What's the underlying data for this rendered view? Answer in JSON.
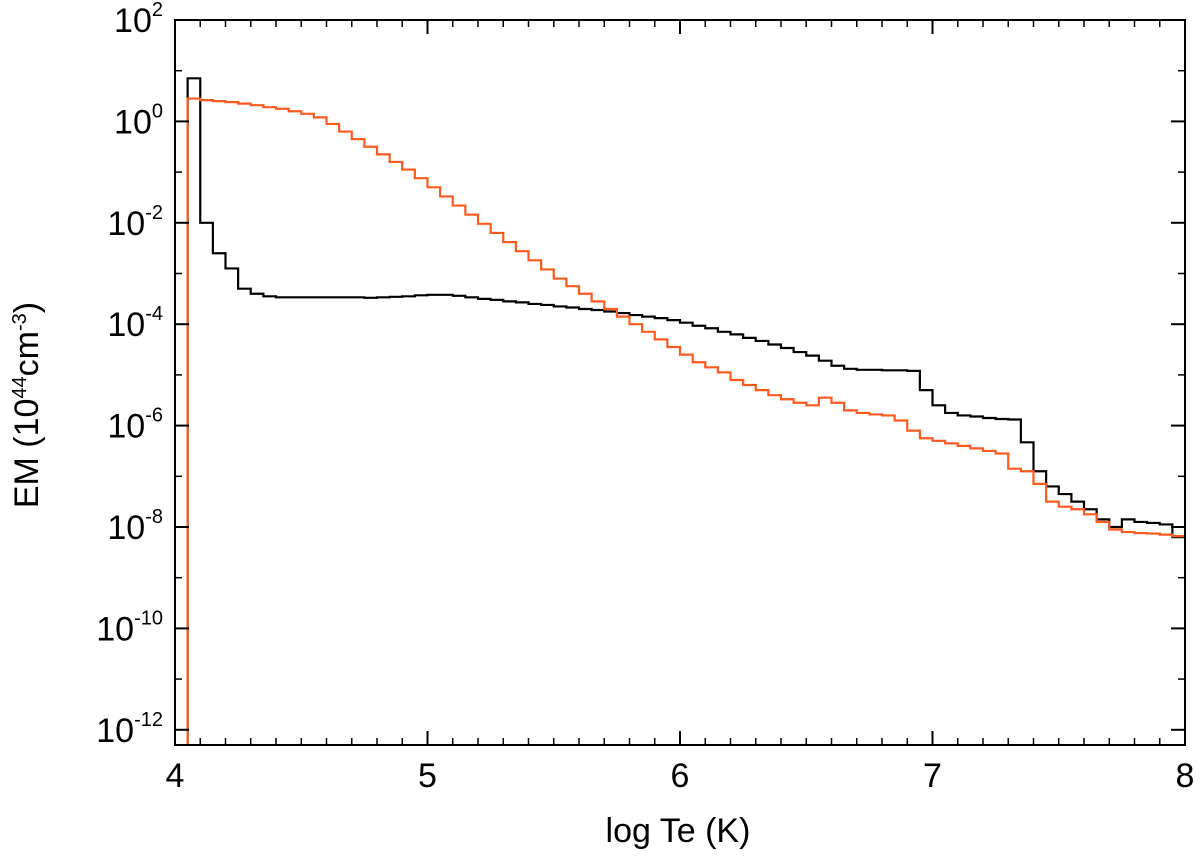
{
  "chart_data": {
    "type": "line",
    "xlabel": "log Te (K)",
    "ylabel": {
      "prefix": "EM (10",
      "exp1": "44",
      "mid": "cm",
      "exp2": "-3",
      "suffix": ")"
    },
    "xlim": [
      4,
      8
    ],
    "ylim_log10": [
      -12.3,
      2
    ],
    "y_scale": "log",
    "x_ticks": [
      "4",
      "5",
      "6",
      "7",
      "8"
    ],
    "y_ticks": [
      {
        "base": "10",
        "exp": "2"
      },
      {
        "base": "10",
        "exp": "0"
      },
      {
        "base": "10",
        "exp": "-2"
      },
      {
        "base": "10",
        "exp": "-4"
      },
      {
        "base": "10",
        "exp": "-6"
      },
      {
        "base": "10",
        "exp": "-8"
      },
      {
        "base": "10",
        "exp": "-10"
      },
      {
        "base": "10",
        "exp": "-12"
      }
    ],
    "y_tick_values_log10": [
      2,
      0,
      -2,
      -4,
      -6,
      -8,
      -10,
      -12
    ],
    "grid": false,
    "series": [
      {
        "color": "#000000",
        "step": true,
        "x": [
          4.0,
          4.05,
          4.1,
          4.15,
          4.2,
          4.25,
          4.3,
          4.35,
          4.4,
          4.45,
          4.5,
          4.55,
          4.6,
          4.65,
          4.7,
          4.75,
          4.8,
          4.85,
          4.9,
          4.95,
          5.0,
          5.05,
          5.1,
          5.15,
          5.2,
          5.25,
          5.3,
          5.35,
          5.4,
          5.45,
          5.5,
          5.55,
          5.6,
          5.65,
          5.7,
          5.75,
          5.8,
          5.85,
          5.9,
          5.95,
          6.0,
          6.05,
          6.1,
          6.15,
          6.2,
          6.25,
          6.3,
          6.35,
          6.4,
          6.45,
          6.5,
          6.55,
          6.6,
          6.65,
          6.7,
          6.75,
          6.8,
          6.85,
          6.9,
          6.95,
          7.0,
          7.05,
          7.1,
          7.15,
          7.2,
          7.25,
          7.3,
          7.35,
          7.4,
          7.45,
          7.5,
          7.55,
          7.6,
          7.65,
          7.7,
          7.75,
          7.8,
          7.85,
          7.9,
          7.95
        ],
        "log10y": [
          -12.5,
          0.85,
          -2.0,
          -2.6,
          -2.9,
          -3.3,
          -3.4,
          -3.45,
          -3.47,
          -3.47,
          -3.47,
          -3.47,
          -3.47,
          -3.47,
          -3.47,
          -3.48,
          -3.47,
          -3.46,
          -3.45,
          -3.43,
          -3.42,
          -3.42,
          -3.44,
          -3.47,
          -3.5,
          -3.52,
          -3.55,
          -3.57,
          -3.6,
          -3.62,
          -3.65,
          -3.67,
          -3.7,
          -3.72,
          -3.75,
          -3.78,
          -3.82,
          -3.85,
          -3.88,
          -3.92,
          -3.97,
          -4.03,
          -4.08,
          -4.15,
          -4.2,
          -4.27,
          -4.33,
          -4.4,
          -4.47,
          -4.55,
          -4.62,
          -4.72,
          -4.82,
          -4.88,
          -4.9,
          -4.9,
          -4.91,
          -4.91,
          -4.92,
          -5.3,
          -5.6,
          -5.75,
          -5.8,
          -5.82,
          -5.85,
          -5.87,
          -5.88,
          -6.33,
          -6.9,
          -7.2,
          -7.35,
          -7.5,
          -7.65,
          -7.85,
          -8.0,
          -7.85,
          -7.9,
          -7.92,
          -7.95,
          -8.2
        ]
      },
      {
        "color": "#ff5a1e",
        "step": true,
        "x": [
          4.0,
          4.05,
          4.1,
          4.15,
          4.2,
          4.25,
          4.3,
          4.35,
          4.4,
          4.45,
          4.5,
          4.55,
          4.6,
          4.65,
          4.7,
          4.75,
          4.8,
          4.85,
          4.9,
          4.95,
          5.0,
          5.05,
          5.1,
          5.15,
          5.2,
          5.25,
          5.3,
          5.35,
          5.4,
          5.45,
          5.5,
          5.55,
          5.6,
          5.65,
          5.7,
          5.75,
          5.8,
          5.85,
          5.9,
          5.95,
          6.0,
          6.05,
          6.1,
          6.15,
          6.2,
          6.25,
          6.3,
          6.35,
          6.4,
          6.45,
          6.5,
          6.55,
          6.6,
          6.65,
          6.7,
          6.75,
          6.8,
          6.85,
          6.9,
          6.95,
          7.0,
          7.05,
          7.1,
          7.15,
          7.2,
          7.25,
          7.3,
          7.35,
          7.4,
          7.45,
          7.5,
          7.55,
          7.6,
          7.65,
          7.7,
          7.75,
          7.8,
          7.85,
          7.9,
          7.95
        ],
        "log10y": [
          -12.5,
          0.45,
          0.42,
          0.4,
          0.38,
          0.35,
          0.32,
          0.28,
          0.25,
          0.2,
          0.15,
          0.08,
          -0.05,
          -0.2,
          -0.35,
          -0.5,
          -0.65,
          -0.8,
          -0.95,
          -1.12,
          -1.3,
          -1.48,
          -1.66,
          -1.84,
          -2.02,
          -2.2,
          -2.38,
          -2.56,
          -2.74,
          -2.92,
          -3.1,
          -3.25,
          -3.4,
          -3.55,
          -3.7,
          -3.85,
          -4.0,
          -4.15,
          -4.3,
          -4.45,
          -4.6,
          -4.75,
          -4.85,
          -4.95,
          -5.1,
          -5.2,
          -5.3,
          -5.4,
          -5.48,
          -5.55,
          -5.6,
          -5.45,
          -5.55,
          -5.7,
          -5.75,
          -5.78,
          -5.8,
          -5.9,
          -6.1,
          -6.25,
          -6.3,
          -6.35,
          -6.4,
          -6.45,
          -6.5,
          -6.55,
          -6.85,
          -6.9,
          -7.15,
          -7.5,
          -7.6,
          -7.65,
          -7.75,
          -7.9,
          -8.05,
          -8.1,
          -8.12,
          -8.13,
          -8.15,
          -8.18
        ]
      }
    ]
  }
}
